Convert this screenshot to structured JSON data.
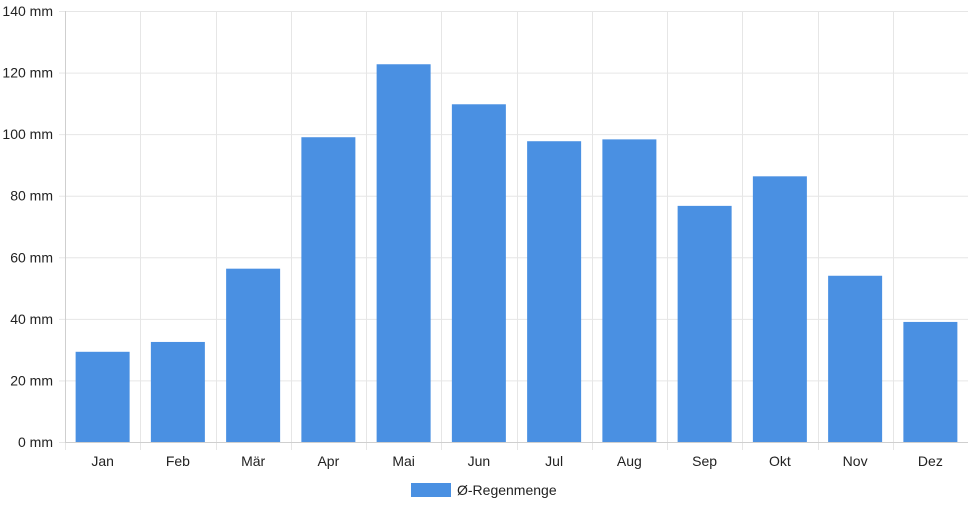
{
  "chart_data": {
    "type": "bar",
    "categories": [
      "Jan",
      "Feb",
      "Mär",
      "Apr",
      "Mai",
      "Jun",
      "Jul",
      "Aug",
      "Sep",
      "Okt",
      "Nov",
      "Dez"
    ],
    "series": [
      {
        "name": "Ø-Regenmenge",
        "color": "#4a90e2",
        "values": [
          29.3,
          32.5,
          56.3,
          99.0,
          122.7,
          109.7,
          97.7,
          98.3,
          76.7,
          86.3,
          54.0,
          39.0
        ]
      }
    ],
    "ylim": [
      0,
      140
    ],
    "y_ticks": [
      0,
      20,
      40,
      60,
      80,
      100,
      120,
      140
    ],
    "y_unit_suffix": " mm",
    "grid": true,
    "legend_position": "bottom"
  }
}
